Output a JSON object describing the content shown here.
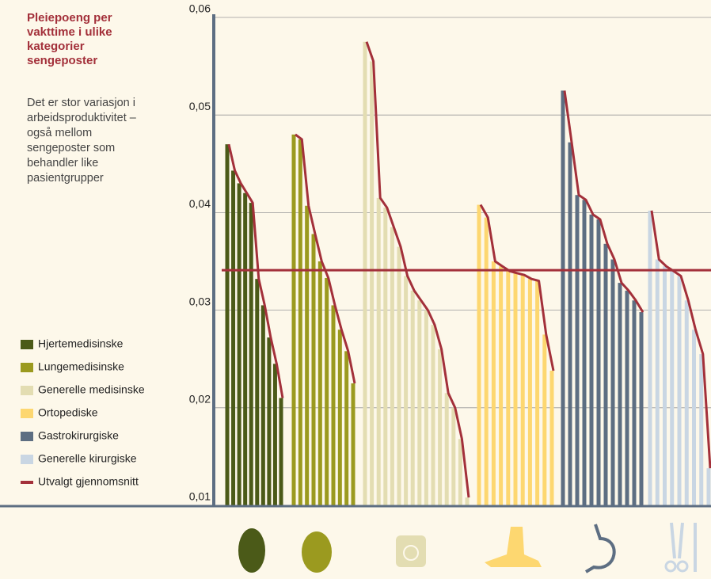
{
  "chart_data": {
    "type": "bar",
    "title": "Pleiepoeng per vakttime i ulike kategorier sengeposter",
    "subtitle": "Det er stor variasjon i arbeidsproduktivitet – også mellom sengeposter som behandler like pasientgrupper",
    "ylim": [
      0.01,
      0.06
    ],
    "yticks": [
      {
        "value": 0.01,
        "label": "0,01"
      },
      {
        "value": 0.02,
        "label": "0,02"
      },
      {
        "value": 0.03,
        "label": "0,03"
      },
      {
        "value": 0.04,
        "label": "0,04"
      },
      {
        "value": 0.05,
        "label": "0,05"
      },
      {
        "value": 0.06,
        "label": "0,06"
      }
    ],
    "grid": true,
    "line_color": "#a3303a",
    "series": [
      {
        "name": "Hjertemedisinske",
        "color": "#4b5a18",
        "values": [
          0.047,
          0.0443,
          0.043,
          0.042,
          0.041,
          0.0332,
          0.0305,
          0.0272,
          0.0245,
          0.021
        ]
      },
      {
        "name": "Lungemedisinske",
        "color": "#9b9a1f",
        "values": [
          0.048,
          0.0475,
          0.0407,
          0.0378,
          0.035,
          0.0333,
          0.0305,
          0.028,
          0.0258,
          0.0225
        ]
      },
      {
        "name": "Generelle medisinske",
        "color": "#e3ddb2",
        "values": [
          0.0575,
          0.0555,
          0.0415,
          0.0405,
          0.0385,
          0.0365,
          0.0335,
          0.032,
          0.031,
          0.03,
          0.0285,
          0.026,
          0.0215,
          0.02,
          0.0168,
          0.0108
        ]
      },
      {
        "name": "Ortopediske",
        "color": "#fdd770",
        "values": [
          0.0408,
          0.0395,
          0.035,
          0.0345,
          0.034,
          0.0338,
          0.0336,
          0.0332,
          0.033,
          0.0275,
          0.0238
        ]
      },
      {
        "name": "Gastrokirurgiske",
        "color": "#5d6e82",
        "values": [
          0.0525,
          0.0472,
          0.0418,
          0.0413,
          0.0398,
          0.0393,
          0.0368,
          0.0352,
          0.0328,
          0.032,
          0.031,
          0.0298
        ]
      },
      {
        "name": "Generelle kirurgiske",
        "color": "#c9d6e3",
        "values": [
          0.0402,
          0.0352,
          0.0345,
          0.034,
          0.0335,
          0.031,
          0.028,
          0.0255,
          0.0138
        ]
      }
    ],
    "average": {
      "name": "Utvalgt gjennomsnitt",
      "color": "#a3303a",
      "value": 0.0341
    }
  }
}
